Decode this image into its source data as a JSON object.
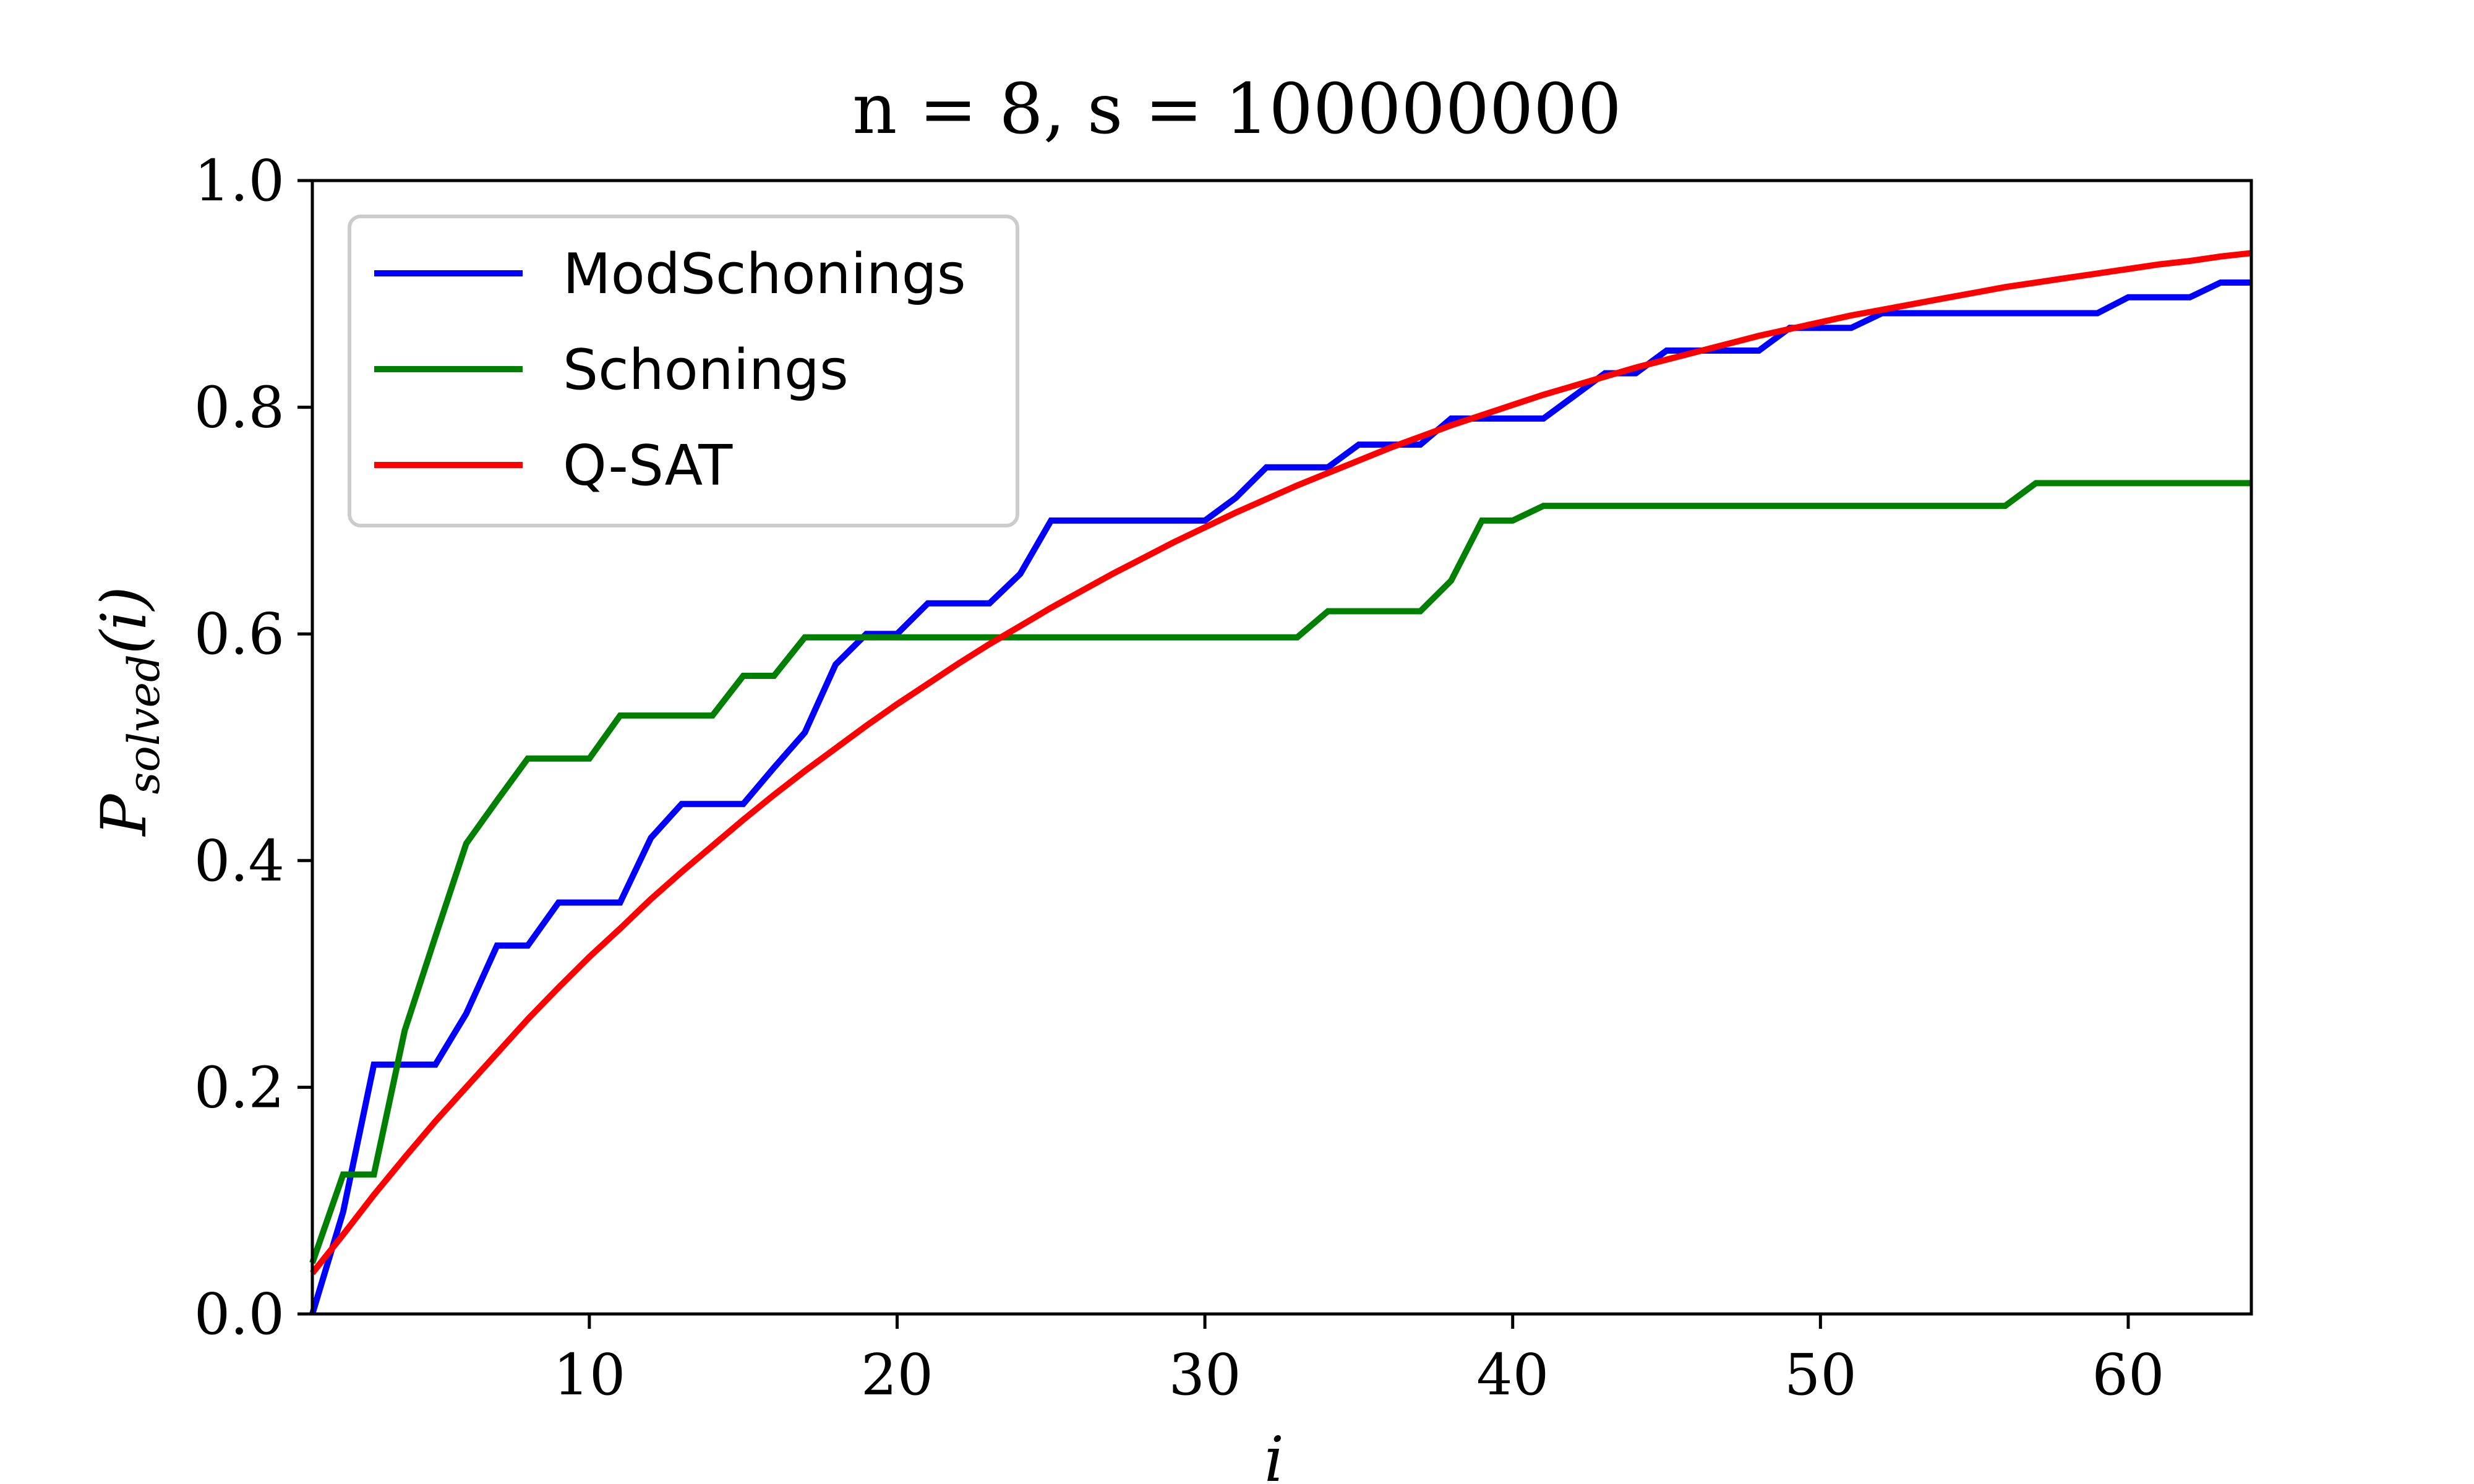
{
  "chart_data": {
    "type": "line",
    "title": "n = 8, s = 100000000",
    "xlabel": "i",
    "ylabel": "P_solved(i)",
    "ylabel_main": "P",
    "ylabel_sub": "solved",
    "ylabel_arg": "(i)",
    "xlim": [
      1,
      64
    ],
    "ylim": [
      0,
      1
    ],
    "xticks": [
      10,
      20,
      30,
      40,
      50,
      60
    ],
    "yticks": [
      0.0,
      0.2,
      0.4,
      0.6,
      0.8,
      1.0
    ],
    "xtick_labels": [
      "10",
      "20",
      "30",
      "40",
      "50",
      "60"
    ],
    "ytick_labels": [
      "0.0",
      "0.2",
      "0.4",
      "0.6",
      "0.8",
      "1.0"
    ],
    "grid": false,
    "legend_position": "top-left",
    "x": [
      1,
      2,
      3,
      4,
      5,
      6,
      7,
      8,
      9,
      10,
      11,
      12,
      13,
      14,
      15,
      16,
      17,
      18,
      19,
      20,
      21,
      22,
      23,
      24,
      25,
      26,
      27,
      28,
      29,
      30,
      31,
      32,
      33,
      34,
      35,
      36,
      37,
      38,
      39,
      40,
      41,
      42,
      43,
      44,
      45,
      46,
      47,
      48,
      49,
      50,
      51,
      52,
      53,
      54,
      55,
      56,
      57,
      58,
      59,
      60,
      61,
      62,
      63,
      64
    ],
    "series": [
      {
        "name": "ModSchonings",
        "color": "#0000ff",
        "values": [
          0.0,
          0.09,
          0.22,
          0.22,
          0.22,
          0.265,
          0.325,
          0.325,
          0.363,
          0.363,
          0.363,
          0.42,
          0.45,
          0.45,
          0.45,
          0.482,
          0.513,
          0.573,
          0.6,
          0.6,
          0.627,
          0.627,
          0.627,
          0.653,
          0.7,
          0.7,
          0.7,
          0.7,
          0.7,
          0.7,
          0.72,
          0.747,
          0.747,
          0.747,
          0.767,
          0.767,
          0.767,
          0.79,
          0.79,
          0.79,
          0.79,
          0.81,
          0.83,
          0.83,
          0.85,
          0.85,
          0.85,
          0.85,
          0.87,
          0.87,
          0.87,
          0.883,
          0.883,
          0.883,
          0.883,
          0.883,
          0.883,
          0.883,
          0.883,
          0.897,
          0.897,
          0.897,
          0.91,
          0.91
        ]
      },
      {
        "name": "Schonings",
        "color": "#008000",
        "values": [
          0.045,
          0.123,
          0.123,
          0.25,
          0.333,
          0.415,
          0.453,
          0.49,
          0.49,
          0.49,
          0.528,
          0.528,
          0.528,
          0.528,
          0.563,
          0.563,
          0.597,
          0.597,
          0.597,
          0.597,
          0.597,
          0.597,
          0.597,
          0.597,
          0.597,
          0.597,
          0.597,
          0.597,
          0.597,
          0.597,
          0.597,
          0.597,
          0.597,
          0.62,
          0.62,
          0.62,
          0.62,
          0.647,
          0.7,
          0.7,
          0.713,
          0.713,
          0.713,
          0.713,
          0.713,
          0.713,
          0.713,
          0.713,
          0.713,
          0.713,
          0.713,
          0.713,
          0.713,
          0.713,
          0.713,
          0.713,
          0.733,
          0.733,
          0.733,
          0.733,
          0.733,
          0.733,
          0.733,
          0.733
        ]
      },
      {
        "name": "Q-SAT",
        "color": "#ff0000",
        "values": [
          0.036,
          0.07,
          0.105,
          0.138,
          0.17,
          0.2,
          0.23,
          0.26,
          0.288,
          0.315,
          0.34,
          0.366,
          0.39,
          0.413,
          0.436,
          0.458,
          0.479,
          0.499,
          0.519,
          0.538,
          0.556,
          0.574,
          0.591,
          0.607,
          0.623,
          0.638,
          0.653,
          0.667,
          0.681,
          0.694,
          0.707,
          0.719,
          0.731,
          0.742,
          0.753,
          0.764,
          0.774,
          0.784,
          0.793,
          0.802,
          0.811,
          0.819,
          0.827,
          0.835,
          0.842,
          0.849,
          0.856,
          0.863,
          0.869,
          0.875,
          0.881,
          0.886,
          0.891,
          0.896,
          0.901,
          0.906,
          0.91,
          0.914,
          0.918,
          0.922,
          0.926,
          0.929,
          0.933,
          0.936
        ]
      }
    ]
  }
}
